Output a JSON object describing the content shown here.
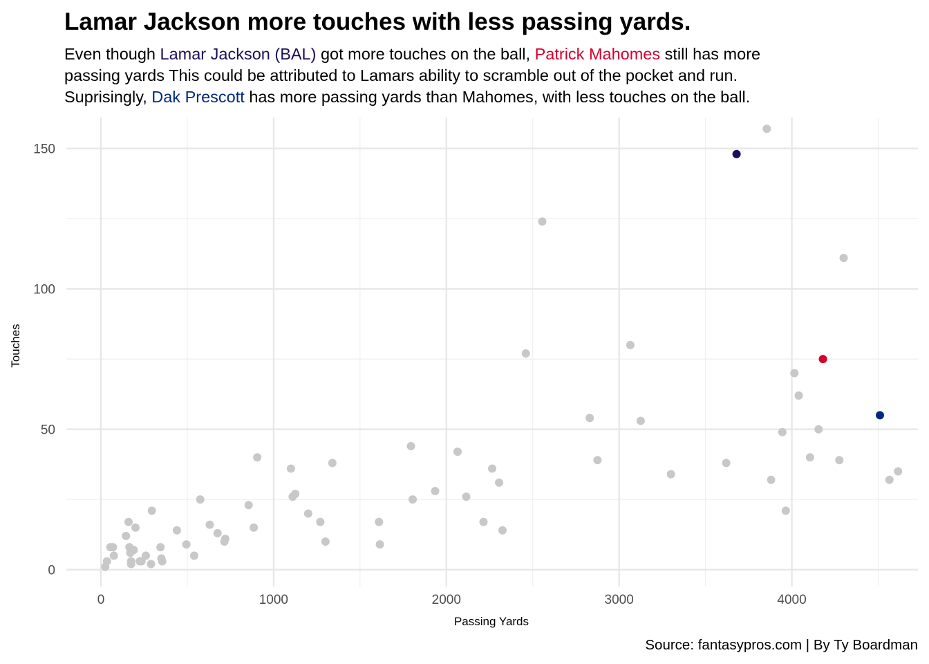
{
  "chart_data": {
    "type": "scatter",
    "title": "Lamar Jackson more touches with less passing yards.",
    "subtitle": {
      "line1": [
        {
          "text": "Even though ",
          "color": "#000000"
        },
        {
          "text": "Lamar Jackson (BAL)",
          "color": "#1a0f5c"
        },
        {
          "text": " got more touches on the ball, ",
          "color": "#000000"
        },
        {
          "text": "Patrick Mahomes",
          "color": "#d6002f"
        },
        {
          "text": " still has more",
          "color": "#000000"
        }
      ],
      "line2": [
        {
          "text": "passing yards This could be attributed to Lamars ability to scramble out of the pocket and run.",
          "color": "#000000"
        }
      ],
      "line3": [
        {
          "text": "Suprisingly, ",
          "color": "#000000"
        },
        {
          "text": "Dak Prescott",
          "color": "#002a80"
        },
        {
          "text": " has more passing yards than Mahomes, with less touches on the ball.",
          "color": "#000000"
        }
      ]
    },
    "xlabel": "Passing Yards",
    "ylabel": "Touches",
    "caption": "Source: fantasypros.com | By Ty Boardman",
    "xlim": [
      -200,
      4730
    ],
    "ylim": [
      -6,
      161
    ],
    "x_ticks": [
      0,
      1000,
      2000,
      3000,
      4000
    ],
    "y_ticks": [
      0,
      50,
      100,
      150
    ],
    "grid": true,
    "colors": {
      "other": "#c8c8c8",
      "lamar": "#1a0f5c",
      "mahomes": "#d6002f",
      "dak": "#002a80"
    },
    "highlighted": [
      {
        "x": 3680,
        "y": 148,
        "color": "#1a0f5c"
      },
      {
        "x": 4180,
        "y": 75,
        "color": "#d6002f"
      },
      {
        "x": 4510,
        "y": 55,
        "color": "#002a80"
      }
    ],
    "points": [
      [
        25,
        1
      ],
      [
        35,
        3
      ],
      [
        55,
        8
      ],
      [
        70,
        8
      ],
      [
        75,
        5
      ],
      [
        145,
        12
      ],
      [
        160,
        17
      ],
      [
        165,
        8
      ],
      [
        170,
        6
      ],
      [
        175,
        3
      ],
      [
        175,
        2
      ],
      [
        180,
        7
      ],
      [
        190,
        7
      ],
      [
        200,
        15
      ],
      [
        225,
        3
      ],
      [
        235,
        3
      ],
      [
        260,
        5
      ],
      [
        290,
        2
      ],
      [
        295,
        21
      ],
      [
        345,
        8
      ],
      [
        350,
        4
      ],
      [
        355,
        3
      ],
      [
        440,
        14
      ],
      [
        495,
        9
      ],
      [
        540,
        5
      ],
      [
        575,
        25
      ],
      [
        630,
        16
      ],
      [
        675,
        13
      ],
      [
        715,
        10
      ],
      [
        720,
        11
      ],
      [
        855,
        23
      ],
      [
        885,
        15
      ],
      [
        905,
        40
      ],
      [
        1100,
        36
      ],
      [
        1110,
        26
      ],
      [
        1125,
        27
      ],
      [
        1200,
        20
      ],
      [
        1270,
        17
      ],
      [
        1300,
        10
      ],
      [
        1340,
        38
      ],
      [
        1610,
        17
      ],
      [
        1615,
        9
      ],
      [
        1795,
        44
      ],
      [
        1805,
        25
      ],
      [
        1935,
        28
      ],
      [
        2065,
        42
      ],
      [
        2115,
        26
      ],
      [
        2215,
        17
      ],
      [
        2265,
        36
      ],
      [
        2305,
        31
      ],
      [
        2325,
        14
      ],
      [
        2460,
        77
      ],
      [
        2555,
        124
      ],
      [
        2830,
        54
      ],
      [
        2875,
        39
      ],
      [
        3065,
        80
      ],
      [
        3125,
        53
      ],
      [
        3300,
        34
      ],
      [
        3620,
        38
      ],
      [
        3855,
        157
      ],
      [
        3880,
        32
      ],
      [
        3945,
        49
      ],
      [
        3965,
        21
      ],
      [
        4015,
        70
      ],
      [
        4040,
        62
      ],
      [
        4105,
        40
      ],
      [
        4155,
        50
      ],
      [
        4275,
        39
      ],
      [
        4300,
        111
      ],
      [
        4565,
        32
      ],
      [
        4615,
        35
      ]
    ]
  }
}
